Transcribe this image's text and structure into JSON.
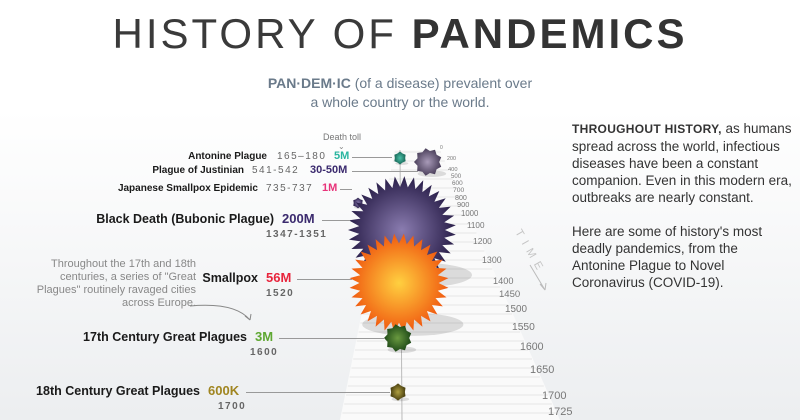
{
  "header": {
    "title_light": "HISTORY OF",
    "title_bold": "PANDEMICS",
    "definition_term": "PAN·DEM·IC",
    "definition_text": " (of a disease) prevalent over",
    "definition_line2": "a whole country or the world."
  },
  "death_toll_label": "Death toll",
  "sidebar": {
    "lead": "THROUGHOUT HISTORY,",
    "p1": " as humans spread across the world, infectious diseases have been a constant companion. Even in this modern era, outbreaks are nearly constant.",
    "p2": "Here are some of history's most deadly pandemics, from the Antonine Plague to Novel Coronavirus (COVID-19)."
  },
  "note": "Throughout the 17th and 18th centuries, a series of \"Great Plagues\" routinely ravaged cities across Europe.",
  "time_label": "TIME",
  "chart_data": {
    "type": "bubble-timeline",
    "title": "History of Pandemics",
    "axis": {
      "label": "TIME",
      "ticks": [
        "0",
        "200",
        "400",
        "500",
        "600",
        "700",
        "800",
        "900",
        "1000",
        "1100",
        "1200",
        "1300",
        "1400",
        "1450",
        "1500",
        "1550",
        "1600",
        "1650",
        "1700",
        "1725"
      ]
    },
    "pandemics": [
      {
        "name": "Antonine Plague",
        "years": "165–180",
        "toll": "5M",
        "deaths_millions": 5,
        "color": "#2ab5a0"
      },
      {
        "name": "Plague of Justinian",
        "years": "541-542",
        "toll": "30-50M",
        "deaths_millions": 40,
        "color": "#3b2a6e"
      },
      {
        "name": "Japanese Smallpox Epidemic",
        "years": "735-737",
        "toll": "1M",
        "deaths_millions": 1,
        "color": "#e8337a"
      },
      {
        "name": "Black Death (Bubonic Plague)",
        "years": "1347-1351",
        "toll": "200M",
        "deaths_millions": 200,
        "color": "#3b2a6e"
      },
      {
        "name": "Smallpox",
        "years": "1520",
        "toll": "56M",
        "deaths_millions": 56,
        "color": "#e8243c"
      },
      {
        "name": "17th Century Great Plagues",
        "years": "1600",
        "toll": "3M",
        "deaths_millions": 3,
        "color": "#5fa832"
      },
      {
        "name": "18th Century Great Plagues",
        "years": "1700",
        "toll": "600K",
        "deaths_millions": 0.6,
        "color": "#a08520"
      }
    ]
  }
}
